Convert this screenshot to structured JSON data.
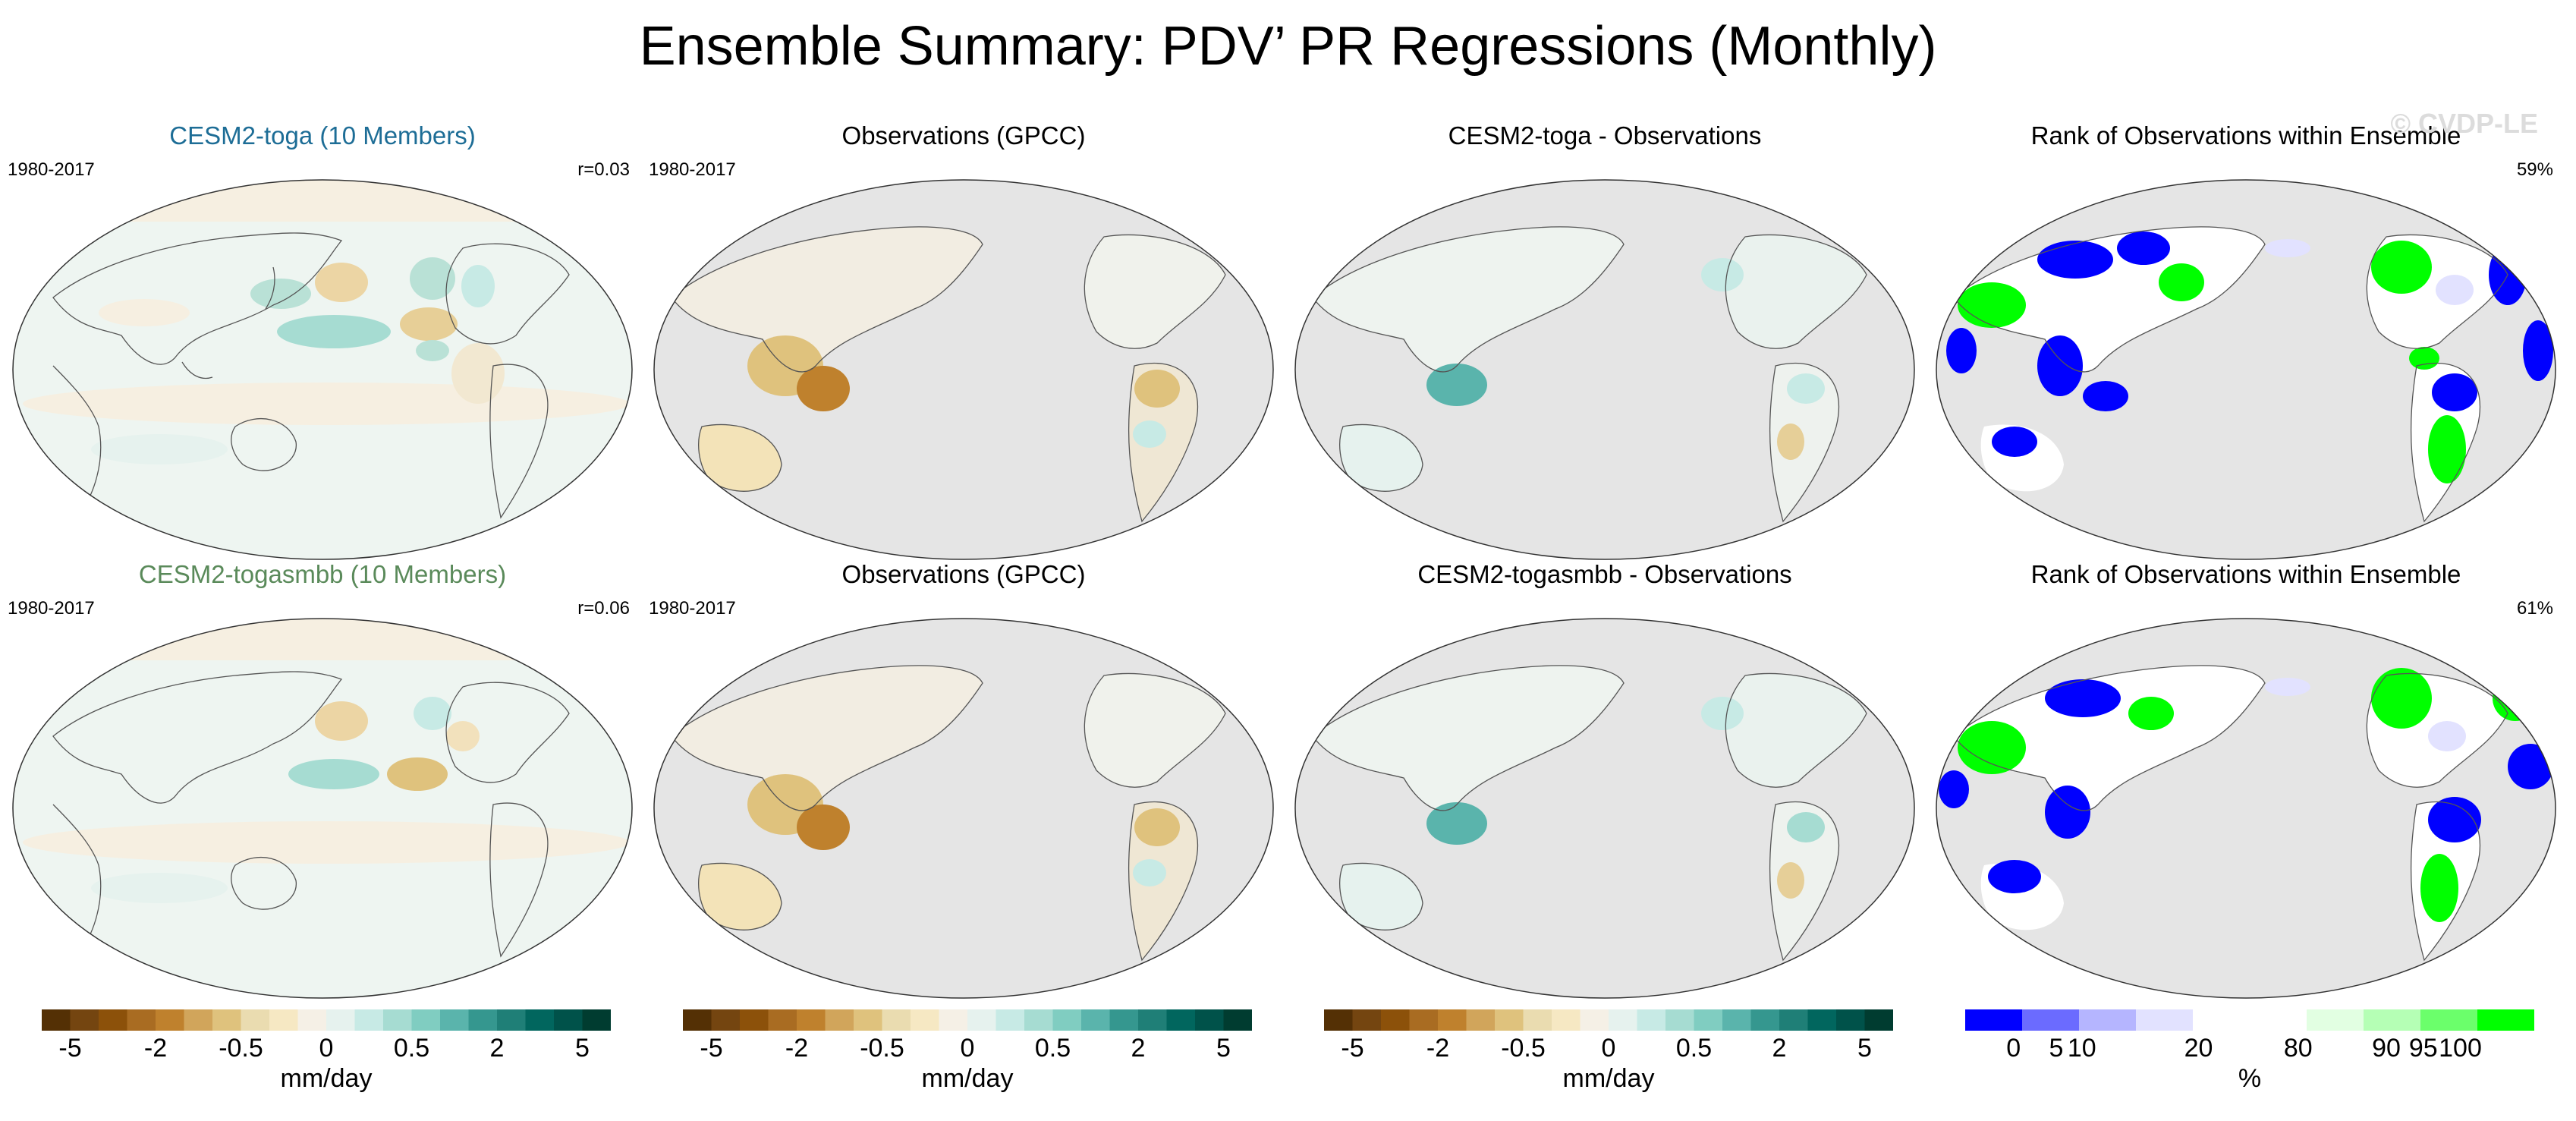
{
  "title": "Ensemble Summary: PDV’ PR Regressions (Monthly)",
  "watermark": "© CVDP-LE",
  "colors": {
    "title_toga": "#1d6d96",
    "title_togasmbb": "#5a8a5a",
    "land_grey": "#e5e5e5",
    "neutral": "#f3efe2"
  },
  "rows": [
    {
      "panels": [
        {
          "title": "CESM2-toga (10 Members)",
          "left": "1980-2017",
          "right": "r=0.03",
          "kind": "model"
        },
        {
          "title": "Observations (GPCC)",
          "left": "1980-2017",
          "right": "",
          "kind": "obs"
        },
        {
          "title": "CESM2-toga - Observations",
          "left": "",
          "right": "",
          "kind": "diff"
        },
        {
          "title": "Rank of Observations within Ensemble",
          "left": "",
          "right": "59%",
          "kind": "rank"
        }
      ]
    },
    {
      "panels": [
        {
          "title": "CESM2-togasmbb (10 Members)",
          "left": "1980-2017",
          "right": "r=0.06",
          "kind": "model"
        },
        {
          "title": "Observations (GPCC)",
          "left": "1980-2017",
          "right": "",
          "kind": "obs"
        },
        {
          "title": "CESM2-togasmbb - Observations",
          "left": "",
          "right": "",
          "kind": "diff"
        },
        {
          "title": "Rank of Observations within Ensemble",
          "left": "",
          "right": "61%",
          "kind": "rank"
        }
      ]
    }
  ],
  "colorbars": {
    "precip": {
      "label": "mm/day",
      "ticks": [
        "-5",
        "-2",
        "-0.5",
        "0",
        "0.5",
        "2",
        "5"
      ],
      "colors": [
        "#543005",
        "#744510",
        "#8c510a",
        "#a96c22",
        "#bf812d",
        "#d1a55b",
        "#dfc27d",
        "#eadcb0",
        "#f6e8c3",
        "#f5f0e6",
        "#e6f2ee",
        "#c7eae5",
        "#a6dcd2",
        "#80cdc1",
        "#5ab4ac",
        "#35978f",
        "#1f7f77",
        "#01665e",
        "#00524a",
        "#003c30"
      ]
    },
    "rank": {
      "label": "%",
      "ticks": [
        "0",
        "5",
        "10",
        "20",
        "80",
        "90",
        "95",
        "100"
      ],
      "colors": [
        "#0000ff",
        "#6b6bff",
        "#b5b5ff",
        "#e2e2ff",
        "#ffffff",
        "#ffffff",
        "#e2ffe2",
        "#b5ffb5",
        "#6bff6b",
        "#00ff00"
      ]
    }
  }
}
